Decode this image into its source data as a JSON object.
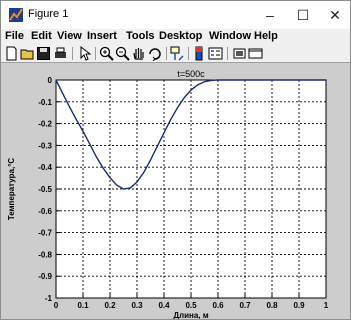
{
  "window": {
    "title": "Figure 1",
    "minimize_glyph": "–",
    "maximize_glyph": "☐",
    "close_glyph": "✕",
    "icon": "matlab-figure-icon"
  },
  "menu": [
    "File",
    "Edit",
    "View",
    "Insert",
    "Tools",
    "Desktop",
    "Window",
    "Help"
  ],
  "toolbar": [
    "new-figure-icon",
    "open-file-icon",
    "save-icon",
    "print-icon",
    "edit-plot-arrow-icon",
    "zoom-in-icon",
    "zoom-out-icon",
    "pan-hand-icon",
    "rotate-3d-icon",
    "data-cursor-icon",
    "colorbar-icon",
    "legend-icon",
    "hide-plot-tools-icon",
    "show-plot-tools-icon"
  ],
  "colors": {
    "figure_bg": "#cdcdcd",
    "axes_bg": "#ffffff",
    "line": "#1c2a78",
    "grid": "#000000"
  },
  "chart_data": {
    "type": "line",
    "title": "t=500c",
    "xlabel": "Длина, м",
    "ylabel": "Температура,°C",
    "xlim": [
      0,
      1
    ],
    "ylim": [
      -1,
      0
    ],
    "grid": true,
    "x_ticks": [
      "0",
      "0.1",
      "0.2",
      "0.3",
      "0.4",
      "0.5",
      "0.6",
      "0.7",
      "0.8",
      "0.9",
      "1"
    ],
    "y_ticks": [
      "0",
      "-0.1",
      "-0.2",
      "-0.3",
      "-0.4",
      "-0.5",
      "-0.6",
      "-0.7",
      "-0.8",
      "-0.9",
      "-1"
    ],
    "series": [
      {
        "x": [
          0,
          0.025,
          0.05,
          0.075,
          0.1,
          0.125,
          0.15,
          0.175,
          0.2,
          0.225,
          0.25,
          0.275,
          0.3,
          0.325,
          0.35,
          0.375,
          0.4,
          0.425,
          0.45,
          0.475,
          0.5,
          0.525,
          0.55,
          0.575,
          0.6,
          0.625,
          0.65,
          0.675,
          0.7,
          0.8,
          0.9,
          1
        ],
        "y": [
          0,
          -0.062,
          -0.123,
          -0.181,
          -0.235,
          -0.294,
          -0.354,
          -0.405,
          -0.448,
          -0.482,
          -0.5,
          -0.495,
          -0.468,
          -0.424,
          -0.367,
          -0.305,
          -0.242,
          -0.181,
          -0.127,
          -0.081,
          -0.046,
          -0.022,
          -0.008,
          -0.002,
          0,
          0,
          0,
          0,
          0,
          0,
          0,
          0
        ]
      }
    ]
  }
}
